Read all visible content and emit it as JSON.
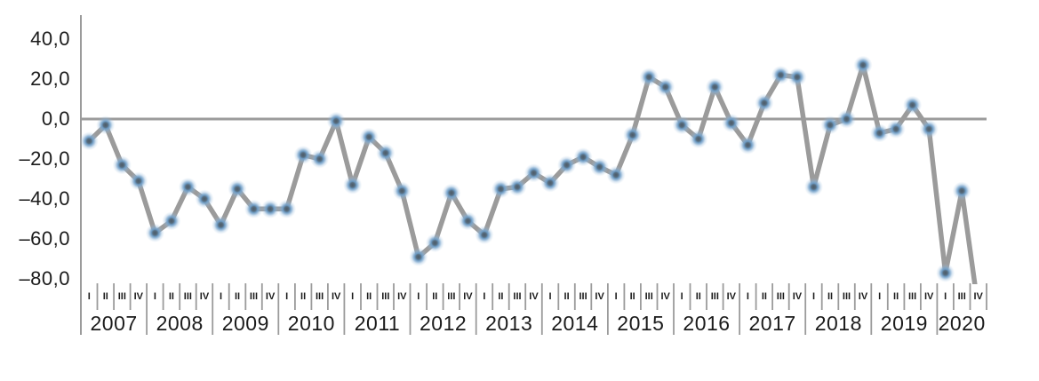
{
  "chart_data": {
    "type": "line",
    "title": "",
    "xlabel": "",
    "ylabel": "",
    "ylim": [
      -80,
      40
    ],
    "grid": false,
    "legend": false,
    "zero_baseline": true,
    "y_tick_labels": [
      "40,0",
      "20,0",
      "0,0",
      "–20,0",
      "–40,0",
      "–60,0",
      "–80,0"
    ],
    "y_tick_values": [
      40,
      20,
      0,
      -20,
      -40,
      -60,
      -80
    ],
    "years": [
      {
        "year": "2007",
        "quarters": [
          "I",
          "II",
          "III",
          "IV"
        ],
        "values": [
          -11,
          -3,
          -23,
          -31
        ]
      },
      {
        "year": "2008",
        "quarters": [
          "I",
          "II",
          "III",
          "IV"
        ],
        "values": [
          -57,
          -51,
          -34,
          -40
        ]
      },
      {
        "year": "2009",
        "quarters": [
          "I",
          "II",
          "III",
          "IV"
        ],
        "values": [
          -53,
          -35,
          -45,
          -45
        ]
      },
      {
        "year": "2010",
        "quarters": [
          "I",
          "II",
          "III",
          "IV"
        ],
        "values": [
          -45,
          -18,
          -20,
          -1
        ]
      },
      {
        "year": "2011",
        "quarters": [
          "I",
          "II",
          "III",
          "IV"
        ],
        "values": [
          -33,
          -9,
          -17,
          -36
        ]
      },
      {
        "year": "2012",
        "quarters": [
          "I",
          "II",
          "III",
          "IV"
        ],
        "values": [
          -69,
          -62,
          -37,
          -51
        ]
      },
      {
        "year": "2013",
        "quarters": [
          "I",
          "II",
          "III",
          "IV"
        ],
        "values": [
          -58,
          -35,
          -34,
          -27
        ]
      },
      {
        "year": "2014",
        "quarters": [
          "I",
          "II",
          "III",
          "IV"
        ],
        "values": [
          -32,
          -23,
          -19,
          -24
        ]
      },
      {
        "year": "2015",
        "quarters": [
          "I",
          "II",
          "III",
          "IV"
        ],
        "values": [
          -28,
          -8,
          21,
          16
        ]
      },
      {
        "year": "2016",
        "quarters": [
          "I",
          "II",
          "III",
          "IV"
        ],
        "values": [
          -3,
          -10,
          16,
          -2
        ]
      },
      {
        "year": "2017",
        "quarters": [
          "I",
          "II",
          "III",
          "IV"
        ],
        "values": [
          -13,
          8,
          22,
          21
        ]
      },
      {
        "year": "2018",
        "quarters": [
          "I",
          "II",
          "III",
          "IV"
        ],
        "values": [
          -34,
          -3,
          0,
          27
        ]
      },
      {
        "year": "2019",
        "quarters": [
          "I",
          "II",
          "III",
          "IV"
        ],
        "values": [
          -7,
          -5,
          7,
          -5
        ]
      },
      {
        "year": "2020",
        "quarters": [
          "I",
          "III",
          "IV"
        ],
        "values": [
          -77,
          -36,
          -95
        ]
      }
    ],
    "colors": {
      "line": "#9b9b9b",
      "axis": "#9b9b9b",
      "marker_ring": "#6e9bc3",
      "marker_core": "#4d5a66",
      "label_text": "#1b1b1b"
    }
  }
}
